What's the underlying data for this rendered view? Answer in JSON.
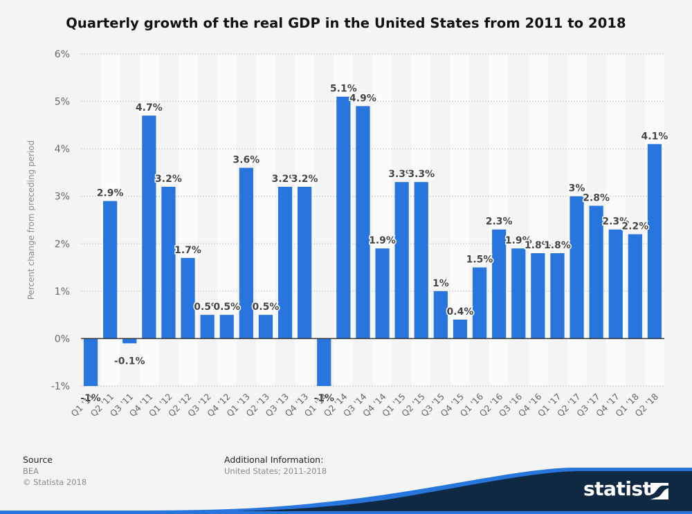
{
  "header": {
    "title": "Quarterly growth of the real GDP in the United States from 2011 to 2018"
  },
  "footer": {
    "source_label": "Source",
    "source_value": "BEA",
    "copyright": "© Statista 2018",
    "additional_label": "Additional Information:",
    "additional_value": "United States; 2011-2018"
  },
  "brand": {
    "logo_text": "statista",
    "logo_icon": "statista-logo-icon"
  },
  "colors": {
    "bar": "#2876dd",
    "background": "#f4f4f4",
    "band_light": "#fafafa",
    "label_text": "#444444",
    "axis_text": "#666666",
    "brand_dark": "#0f2942",
    "brand_blue": "#2876dd"
  },
  "chart_data": {
    "type": "bar",
    "title": "Quarterly growth of the real GDP in the United States from 2011 to 2018",
    "xlabel": "",
    "ylabel": "Percent change from preceding period",
    "ylim": [
      -1,
      6
    ],
    "yticks": [
      -1,
      0,
      1,
      2,
      3,
      4,
      5,
      6
    ],
    "ytick_labels": [
      "-1%",
      "0%",
      "1%",
      "2%",
      "3%",
      "4%",
      "5%",
      "6%"
    ],
    "grid": true,
    "legend": "none",
    "categories": [
      "Q1 '11",
      "Q2 '11",
      "Q3 '11",
      "Q4 '11",
      "Q1 '12",
      "Q2 '12",
      "Q3 '12",
      "Q4 '12",
      "Q1 '13",
      "Q2 '13",
      "Q3 '13",
      "Q4 '13",
      "Q1 '14",
      "Q2 '14",
      "Q3 '14",
      "Q4 '14",
      "Q1 '15",
      "Q2 '15",
      "Q3 '15",
      "Q4 '15",
      "Q1 '16",
      "Q2 '16",
      "Q3 '16",
      "Q4 '16",
      "Q1 '17",
      "Q2 '17",
      "Q3 '17",
      "Q4 '17",
      "Q1 '18",
      "Q2 '18"
    ],
    "values": [
      -1,
      2.9,
      -0.1,
      4.7,
      3.2,
      1.7,
      0.5,
      0.5,
      3.6,
      0.5,
      3.2,
      3.2,
      -1,
      5.1,
      4.9,
      1.9,
      3.3,
      3.3,
      1,
      0.4,
      1.5,
      2.3,
      1.9,
      1.8,
      1.8,
      3,
      2.8,
      2.3,
      2.2,
      4.1
    ],
    "data_labels": [
      "-1%",
      "2.9%",
      "-0.1%",
      "4.7%",
      "3.2%",
      "1.7%",
      "0.5%",
      "0.5%",
      "3.6%",
      "0.5%",
      "3.2%",
      "3.2%",
      "-1%",
      "5.1%",
      "4.9%",
      "1.9%",
      "3.3%",
      "3.3%",
      "1%",
      "0.4%",
      "1.5%",
      "2.3%",
      "1.9%",
      "1.8%",
      "1.8%",
      "3%",
      "2.8%",
      "2.3%",
      "2.2%",
      "4.1%"
    ]
  }
}
